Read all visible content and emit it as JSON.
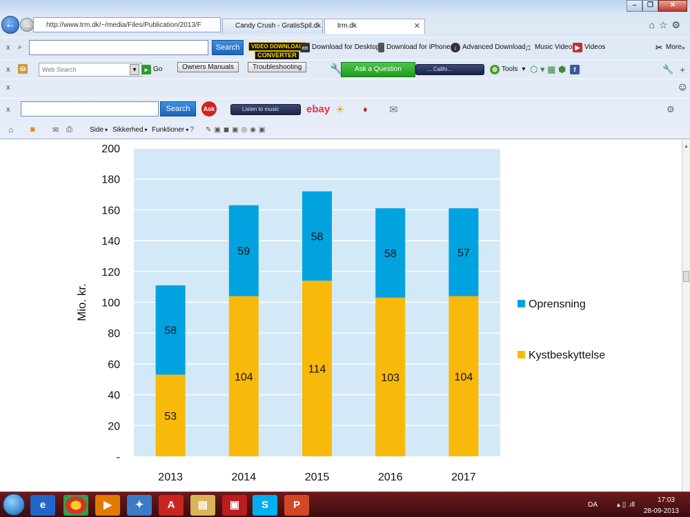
{
  "browser": {
    "address": "http://www.trm.dk/~/media/Files/Publication/2013/F",
    "tabs": [
      {
        "label": "Candy Crush - GratisSpil.dk",
        "active": false
      },
      {
        "label": "trm.dk",
        "active": true
      }
    ],
    "toolbar1": {
      "search_label": "Search",
      "video_badge_top": "VIDEO DOWNLOAD",
      "video_badge_bottom": "CONVERTER",
      "items": [
        "Download for Desktop",
        "Download for iPhone",
        "Advanced Download",
        "Music Videos",
        "Videos",
        "More"
      ]
    },
    "toolbar2": {
      "web_search_placeholder": "Web Search",
      "go_label": "Go",
      "owners_manuals": "Owners Manuals",
      "troubleshooting": "Troubleshooting",
      "ask_question": "Ask a Question",
      "radio_station": "... Califo...",
      "tools_label": "Tools"
    },
    "toolbar3": {
      "search_label": "Search",
      "listen_label": "Listen to music",
      "ebay_label": "ebay"
    },
    "command_bar": [
      "Side",
      "Sikkerhed",
      "Funktioner"
    ]
  },
  "taskbar": {
    "lang": "DA",
    "time": "17:03",
    "date": "28-09-2013"
  },
  "colors": {
    "oprensning": "#00a3df",
    "kystbeskyttelse": "#f8b90b",
    "plot_bg": "#d4e9f7"
  },
  "chart_data": {
    "type": "bar",
    "stacked": true,
    "categories": [
      "2013",
      "2014",
      "2015",
      "2016",
      "2017"
    ],
    "series": [
      {
        "name": "Kystbeskyttelse",
        "values": [
          53,
          104,
          114,
          103,
          104
        ],
        "color": "#f8b90b"
      },
      {
        "name": "Oprensning",
        "values": [
          58,
          59,
          58,
          58,
          57
        ],
        "color": "#00a3df"
      }
    ],
    "ylabel": "Mio. kr.",
    "ylim": [
      0,
      200
    ],
    "yticks": [
      0,
      20,
      40,
      60,
      80,
      100,
      120,
      140,
      160,
      180,
      200
    ],
    "ytick_labels": [
      "-",
      "20",
      "40",
      "60",
      "80",
      "100",
      "120",
      "140",
      "160",
      "180",
      "200"
    ],
    "grid": true,
    "legend_position": "right",
    "legend_order": [
      "Oprensning",
      "Kystbeskyttelse"
    ]
  }
}
